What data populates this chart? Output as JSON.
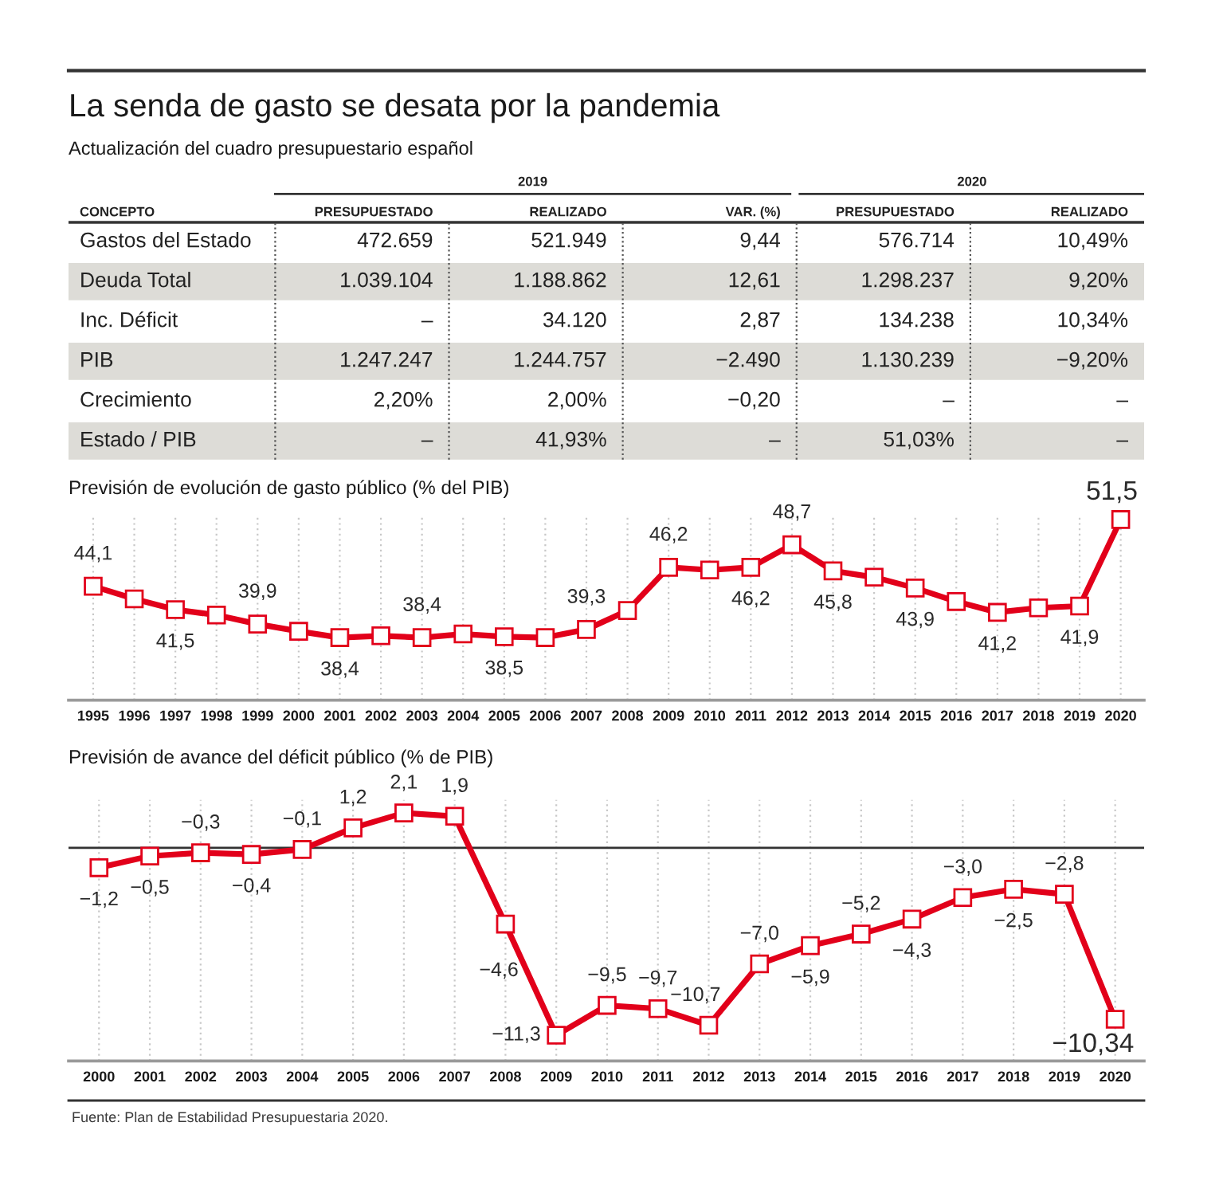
{
  "chart_data": [
    {
      "type": "other",
      "title": "La senda de gasto se desata por la pandemia",
      "subtitle": "Actualización del cuadro presupuestario español",
      "ylabel": "CONCEPTO",
      "categories": [
        "PRESUPUESTADO",
        "REALIZADO",
        "VAR. (%)",
        "PRESUPUESTADO",
        "REALIZADO"
      ],
      "y_categories": [
        "Gastos del Estado",
        "Deuda Total",
        "Inc. Déficit",
        "PIB",
        "Crecimiento",
        "Estado / PIB"
      ],
      "cell_labels": [
        [
          "472.659",
          "521.949",
          "9,44",
          "576.714",
          "10,49%"
        ],
        [
          "1.039.104",
          "1.188.862",
          "12,61",
          "1.298.237",
          "9,20%"
        ],
        [
          "–",
          "34.120",
          "2,87",
          "134.238",
          "10,34%"
        ],
        [
          "1.247.247",
          "1.244.757",
          "−2.490",
          "1.130.239",
          "−9,20%"
        ],
        [
          "2,20%",
          "2,00%",
          "−0,20",
          "–",
          "–"
        ],
        [
          "–",
          "41,93%",
          "–",
          "51,03%",
          "–"
        ]
      ],
      "annotations": [
        "2019",
        "2020"
      ]
    },
    {
      "type": "line",
      "title": "Previsión de evolución de gasto público (% del PIB)",
      "categories": [
        "1995",
        "1996",
        "1997",
        "1998",
        "1999",
        "2000",
        "2001",
        "2002",
        "2003",
        "2004",
        "2005",
        "2006",
        "2007",
        "2008",
        "2009",
        "2010",
        "2011",
        "2012",
        "2013",
        "2014",
        "2015",
        "2016",
        "2017",
        "2018",
        "2019",
        "2020"
      ],
      "values": [
        44.1,
        42.7,
        41.5,
        40.9,
        39.9,
        39.1,
        38.4,
        38.6,
        38.4,
        38.8,
        38.5,
        38.4,
        39.3,
        41.4,
        46.2,
        45.9,
        46.2,
        48.7,
        45.8,
        45.1,
        43.9,
        42.4,
        41.2,
        41.7,
        41.9,
        51.5
      ],
      "value_labels": [
        "44,1",
        null,
        "41,5",
        null,
        "39,9",
        null,
        "38,4",
        null,
        "38,4",
        null,
        "38,5",
        null,
        "39,3",
        null,
        "46,2",
        null,
        "46,2",
        "48,7",
        "45,8",
        null,
        "43,9",
        null,
        "41,2",
        null,
        "41,9",
        "51,5"
      ],
      "color": "#e2001a",
      "marker": "square",
      "grid": "x"
    },
    {
      "type": "line",
      "title": "Previsión de avance del déficit público (% de PIB)",
      "categories": [
        "2000",
        "2001",
        "2002",
        "2003",
        "2004",
        "2005",
        "2006",
        "2007",
        "2008",
        "2009",
        "2010",
        "2011",
        "2012",
        "2013",
        "2014",
        "2015",
        "2016",
        "2017",
        "2018",
        "2019",
        "2020"
      ],
      "values": [
        -1.2,
        -0.5,
        -0.3,
        -0.4,
        -0.1,
        1.2,
        2.1,
        1.9,
        -4.6,
        -11.3,
        -9.5,
        -9.7,
        -10.7,
        -7.0,
        -5.9,
        -5.2,
        -4.3,
        -3.0,
        -2.5,
        -2.8,
        -10.34
      ],
      "value_labels": [
        "−1,2",
        "−0,5",
        "−0,3",
        "−0,4",
        "−0,1",
        "1,2",
        "2,1",
        "1,9",
        "−4,6",
        "−11,3",
        "−9,5",
        "−9,7",
        "−10,7",
        "−7,0",
        "−5,9",
        "−5,2",
        "−4,3",
        "−3,0",
        "−2,5",
        "−2,8",
        "−10,34"
      ],
      "color": "#e2001a",
      "marker": "square",
      "grid": "x",
      "ref_lines": [
        {
          "axis": "y",
          "value": 0,
          "color": "#333333"
        }
      ],
      "annotations": [
        "Fuente: Plan de Estabilidad Presupuestaria 2020."
      ]
    }
  ]
}
